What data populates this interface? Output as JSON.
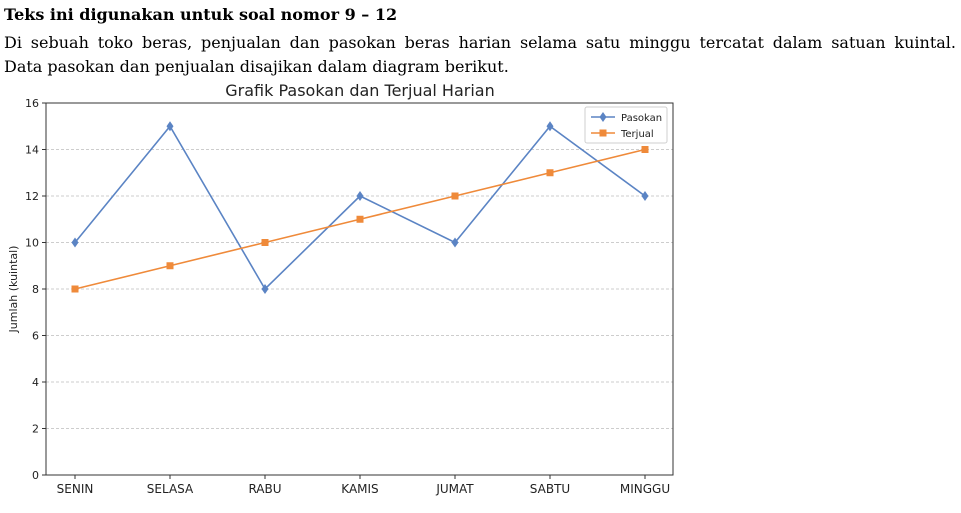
{
  "heading": "Teks ini digunakan untuk soal nomor 9 – 12",
  "paragraph": {
    "line1": "Di sebuah toko beras, penjualan dan pasokan beras harian selama satu minggu tercatat dalam satuan kuintal.",
    "line2": "Data pasokan dan penjualan disajikan dalam diagram berikut."
  },
  "chart_data": {
    "type": "line",
    "title": "Grafik Pasokan dan Terjual Harian",
    "xlabel": "",
    "ylabel": "Jumlah (kuintal)",
    "categories": [
      "SENIN",
      "SELASA",
      "RABU",
      "KAMIS",
      "JUMAT",
      "SABTU",
      "MINGGU"
    ],
    "ylim": [
      0,
      16
    ],
    "yticks": [
      0,
      2,
      4,
      6,
      8,
      10,
      12,
      14,
      16
    ],
    "grid": true,
    "legend_position": "top-right",
    "series": [
      {
        "name": "Pasokan",
        "values": [
          10,
          15,
          8,
          12,
          10,
          15,
          12
        ],
        "color": "#5b84c4",
        "marker": "diamond"
      },
      {
        "name": "Terjual",
        "values": [
          8,
          9,
          10,
          11,
          12,
          13,
          14
        ],
        "color": "#ef8a3a",
        "marker": "square"
      }
    ]
  }
}
